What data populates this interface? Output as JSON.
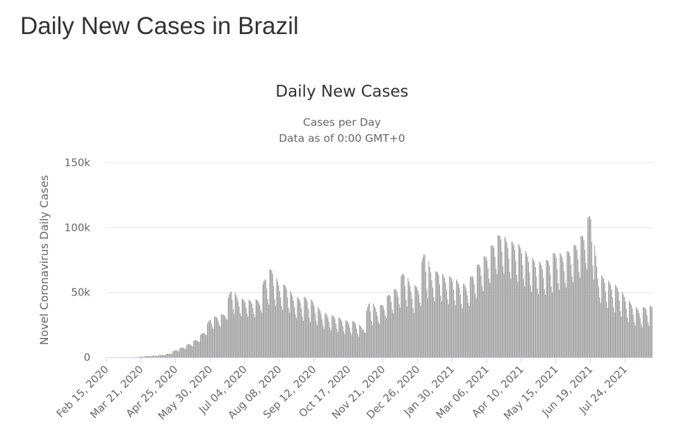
{
  "page": {
    "title": "Daily New Cases in Brazil"
  },
  "chart_data": {
    "type": "bar",
    "title": "Daily New Cases",
    "subtitle_lines": [
      "Cases per Day",
      "Data as of 0:00 GMT+0"
    ],
    "xlabel": "",
    "ylabel": "Novel Coronavirus Daily Cases",
    "ylim": [
      0,
      150000
    ],
    "y_ticks": [
      {
        "value": 0,
        "label": "0"
      },
      {
        "value": 50000,
        "label": "50k"
      },
      {
        "value": 100000,
        "label": "100k"
      },
      {
        "value": 150000,
        "label": "150k"
      }
    ],
    "x_ticks": [
      "Feb 15, 2020",
      "Mar 21, 2020",
      "Apr 25, 2020",
      "May 30, 2020",
      "Jul 04, 2020",
      "Aug 08, 2020",
      "Sep 12, 2020",
      "Oct 17, 2020",
      "Nov 21, 2020",
      "Dec 26, 2020",
      "Jan 30, 2021",
      "Mar 06, 2021",
      "Apr 10, 2021",
      "May 15, 2021",
      "Jun 19, 2021",
      "Jul 24, 2021"
    ],
    "date_range": [
      "2020-02-15",
      "2021-08-20"
    ],
    "approx_weekly": [
      {
        "week_of": "2020-02-15",
        "peak": 0,
        "trough": 0
      },
      {
        "week_of": "2020-03-14",
        "peak": 100,
        "trough": 0
      },
      {
        "week_of": "2020-03-28",
        "peak": 1200,
        "trough": 300
      },
      {
        "week_of": "2020-04-04",
        "peak": 1500,
        "trough": 500
      },
      {
        "week_of": "2020-04-11",
        "peak": 2000,
        "trough": 700
      },
      {
        "week_of": "2020-04-18",
        "peak": 3000,
        "trough": 1000
      },
      {
        "week_of": "2020-04-25",
        "peak": 6000,
        "trough": 2500
      },
      {
        "week_of": "2020-05-02",
        "peak": 8000,
        "trough": 4000
      },
      {
        "week_of": "2020-05-09",
        "peak": 11000,
        "trough": 5000
      },
      {
        "week_of": "2020-05-16",
        "peak": 14000,
        "trough": 7000
      },
      {
        "week_of": "2020-05-23",
        "peak": 20000,
        "trough": 10000
      },
      {
        "week_of": "2020-05-30",
        "peak": 31000,
        "trough": 14000
      },
      {
        "week_of": "2020-06-06",
        "peak": 32000,
        "trough": 16000
      },
      {
        "week_of": "2020-06-13",
        "peak": 34000,
        "trough": 18000
      },
      {
        "week_of": "2020-06-20",
        "peak": 55000,
        "trough": 20000
      },
      {
        "week_of": "2020-06-27",
        "peak": 46000,
        "trough": 22000
      },
      {
        "week_of": "2020-07-04",
        "peak": 45000,
        "trough": 22000
      },
      {
        "week_of": "2020-07-11",
        "peak": 44000,
        "trough": 22000
      },
      {
        "week_of": "2020-07-18",
        "peak": 45000,
        "trough": 21000
      },
      {
        "week_of": "2020-07-25",
        "peak": 65000,
        "trough": 21000
      },
      {
        "week_of": "2020-08-01",
        "peak": 70000,
        "trough": 22000
      },
      {
        "week_of": "2020-08-08",
        "peak": 55000,
        "trough": 23000
      },
      {
        "week_of": "2020-08-15",
        "peak": 57000,
        "trough": 22000
      },
      {
        "week_of": "2020-08-22",
        "peak": 47000,
        "trough": 20000
      },
      {
        "week_of": "2020-08-29",
        "peak": 46000,
        "trough": 16000
      },
      {
        "week_of": "2020-09-05",
        "peak": 47000,
        "trough": 14000
      },
      {
        "week_of": "2020-09-12",
        "peak": 43000,
        "trough": 14000
      },
      {
        "week_of": "2020-09-19",
        "peak": 36000,
        "trough": 13000
      },
      {
        "week_of": "2020-09-26",
        "peak": 33000,
        "trough": 13000
      },
      {
        "week_of": "2020-10-03",
        "peak": 32000,
        "trough": 12000
      },
      {
        "week_of": "2020-10-10",
        "peak": 30000,
        "trough": 10000
      },
      {
        "week_of": "2020-10-17",
        "peak": 28000,
        "trough": 10000
      },
      {
        "week_of": "2020-10-24",
        "peak": 28000,
        "trough": 9000
      },
      {
        "week_of": "2020-10-31",
        "peak": 23000,
        "trough": 8000
      },
      {
        "week_of": "2020-11-07",
        "peak": 46000,
        "trough": 10000
      },
      {
        "week_of": "2020-11-14",
        "peak": 38000,
        "trough": 14000
      },
      {
        "week_of": "2020-11-21",
        "peak": 42000,
        "trough": 18000
      },
      {
        "week_of": "2020-11-28",
        "peak": 51000,
        "trough": 20000
      },
      {
        "week_of": "2020-12-05",
        "peak": 54000,
        "trough": 22000
      },
      {
        "week_of": "2020-12-12",
        "peak": 69000,
        "trough": 23000
      },
      {
        "week_of": "2020-12-19",
        "peak": 55000,
        "trough": 20000
      },
      {
        "week_of": "2020-12-26",
        "peak": 56000,
        "trough": 17000
      },
      {
        "week_of": "2021-01-02",
        "peak": 87000,
        "trough": 20000
      },
      {
        "week_of": "2021-01-09",
        "peak": 64000,
        "trough": 26000
      },
      {
        "week_of": "2021-01-16",
        "peak": 68000,
        "trough": 28000
      },
      {
        "week_of": "2021-01-23",
        "peak": 62000,
        "trough": 26000
      },
      {
        "week_of": "2021-01-30",
        "peak": 63000,
        "trough": 26000
      },
      {
        "week_of": "2021-02-06",
        "peak": 58000,
        "trough": 24000
      },
      {
        "week_of": "2021-02-13",
        "peak": 56000,
        "trough": 23000
      },
      {
        "week_of": "2021-02-20",
        "peak": 66000,
        "trough": 27000
      },
      {
        "week_of": "2021-02-27",
        "peak": 75000,
        "trough": 30000
      },
      {
        "week_of": "2021-03-06",
        "peak": 80000,
        "trough": 35000
      },
      {
        "week_of": "2021-03-13",
        "peak": 90000,
        "trough": 42000
      },
      {
        "week_of": "2021-03-20",
        "peak": 97000,
        "trough": 45000
      },
      {
        "week_of": "2021-03-27",
        "peak": 90000,
        "trough": 41000
      },
      {
        "week_of": "2021-04-03",
        "peak": 89000,
        "trough": 38000
      },
      {
        "week_of": "2021-04-10",
        "peak": 86000,
        "trough": 36000
      },
      {
        "week_of": "2021-04-17",
        "peak": 79000,
        "trough": 32000
      },
      {
        "week_of": "2021-04-24",
        "peak": 75000,
        "trough": 30000
      },
      {
        "week_of": "2021-05-01",
        "peak": 73000,
        "trough": 30000
      },
      {
        "week_of": "2021-05-08",
        "peak": 77000,
        "trough": 28000
      },
      {
        "week_of": "2021-05-15",
        "peak": 83000,
        "trough": 30000
      },
      {
        "week_of": "2021-05-22",
        "peak": 79000,
        "trough": 32000
      },
      {
        "week_of": "2021-05-29",
        "peak": 84000,
        "trough": 37000
      },
      {
        "week_of": "2021-06-05",
        "peak": 89000,
        "trough": 38000
      },
      {
        "week_of": "2021-06-12",
        "peak": 97000,
        "trough": 40000
      },
      {
        "week_of": "2021-06-19",
        "peak": 115000,
        "trough": 42000
      },
      {
        "week_of": "2021-06-26",
        "peak": 65000,
        "trough": 28000
      },
      {
        "week_of": "2021-07-03",
        "peak": 62000,
        "trough": 24000
      },
      {
        "week_of": "2021-07-10",
        "peak": 57000,
        "trough": 20000
      },
      {
        "week_of": "2021-07-17",
        "peak": 55000,
        "trough": 18000
      },
      {
        "week_of": "2021-07-24",
        "peak": 47000,
        "trough": 15000
      },
      {
        "week_of": "2021-07-31",
        "peak": 41000,
        "trough": 14000
      },
      {
        "week_of": "2021-08-07",
        "peak": 37000,
        "trough": 12000
      },
      {
        "week_of": "2021-08-14",
        "peak": 40000,
        "trough": 13000
      }
    ],
    "grid": true,
    "legend": "none",
    "colors": {
      "bar": "#999999",
      "grid": "#e6e6e6",
      "baseline": "#ccd6eb",
      "text": "#666666",
      "title": "#333333"
    }
  }
}
